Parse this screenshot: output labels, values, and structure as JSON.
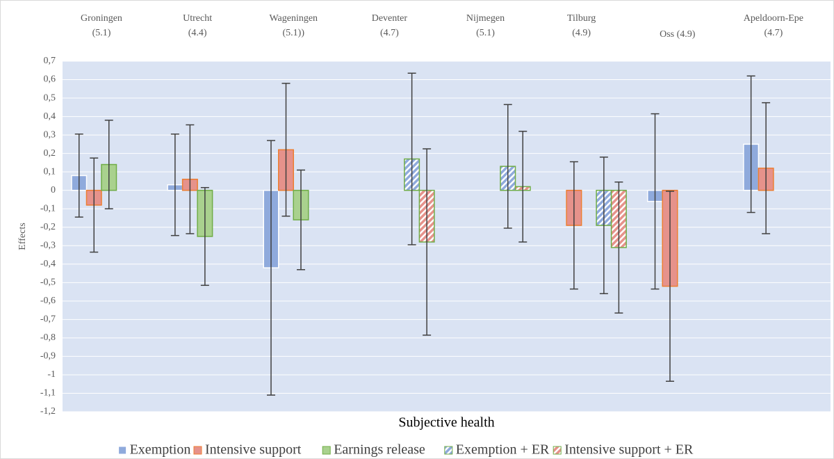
{
  "chart_data": {
    "type": "bar",
    "x_label": "Subjective health",
    "y_label": "Effects",
    "categories": [
      [
        "Groningen",
        "(5.1)"
      ],
      [
        "Utrecht",
        "(4.4)"
      ],
      [
        "Wageningen",
        "(5.1))"
      ],
      [
        "Deventer",
        "(4.7)"
      ],
      [
        "Nijmegen",
        "(5.1)"
      ],
      [
        "Tilburg",
        "(4.9)"
      ],
      [
        "Oss (4.9)"
      ],
      [
        "Apeldoorn-Epe",
        "(4.7)"
      ]
    ],
    "series": [
      {
        "name": "Exemption",
        "color": "#8faadc",
        "edgecolor": "#ffffff",
        "hatch": false,
        "values": [
          0.08,
          0.03,
          -0.42,
          null,
          null,
          null,
          -0.06,
          0.25
        ],
        "errors": [
          0.225,
          0.275,
          0.69,
          null,
          null,
          null,
          0.475,
          0.37
        ]
      },
      {
        "name": "Intensive support",
        "color": "#e6928b",
        "edgecolor": "#ed7d31",
        "hatch": false,
        "values": [
          -0.08,
          0.06,
          0.22,
          null,
          null,
          -0.19,
          -0.52,
          0.12
        ],
        "errors": [
          0.255,
          0.295,
          0.36,
          null,
          null,
          0.345,
          0.515,
          0.355
        ]
      },
      {
        "name": "Earnings release",
        "color": "#a9d18e",
        "edgecolor": "#70ad47",
        "hatch": false,
        "values": [
          0.14,
          -0.25,
          -0.16,
          null,
          null,
          null,
          null,
          null
        ],
        "errors": [
          0.24,
          0.265,
          0.27,
          null,
          null,
          null,
          null,
          null
        ]
      },
      {
        "name": "Exemption + ER",
        "color": "#8faadc",
        "edgecolor": "#70ad47",
        "hatch": true,
        "values": [
          null,
          null,
          null,
          0.17,
          0.13,
          -0.19,
          null,
          null
        ],
        "errors": [
          null,
          null,
          null,
          0.465,
          0.335,
          0.37,
          null,
          null
        ]
      },
      {
        "name": "Intensive support + ER",
        "color": "#e6928b",
        "edgecolor": "#70ad47",
        "hatch": true,
        "values": [
          null,
          null,
          null,
          -0.28,
          0.02,
          -0.31,
          null,
          null
        ],
        "errors": [
          null,
          null,
          null,
          0.505,
          0.3,
          0.355,
          null,
          null
        ]
      }
    ],
    "ylim": [
      -1.2,
      0.7
    ],
    "yticks": [
      {
        "value": 0.7,
        "label": "0,7"
      },
      {
        "value": 0.6,
        "label": "0,6"
      },
      {
        "value": 0.5,
        "label": "0,5"
      },
      {
        "value": 0.4,
        "label": "0,4"
      },
      {
        "value": 0.3,
        "label": "0,3"
      },
      {
        "value": 0.2,
        "label": "0,2"
      },
      {
        "value": 0.1,
        "label": "0,1"
      },
      0,
      {
        "value": -0.1,
        "label": "-0,1"
      },
      {
        "value": -0.2,
        "label": "-0,2"
      },
      {
        "value": -0.3,
        "label": "-0,3"
      },
      {
        "value": -0.4,
        "label": "-0,4"
      },
      {
        "value": -0.5,
        "label": "-0,5"
      },
      {
        "value": -0.6,
        "label": "-0,6"
      },
      {
        "value": -0.7,
        "label": "-0,7"
      },
      {
        "value": -0.8,
        "label": "-0,8"
      },
      {
        "value": -0.9,
        "label": "-0,9"
      },
      -1,
      {
        "value": -1.1,
        "label": "-1,1"
      },
      {
        "value": -1.2,
        "label": "-1,2"
      }
    ],
    "grid": true,
    "plot_background": "#dae3f3",
    "legend": "bottom"
  }
}
